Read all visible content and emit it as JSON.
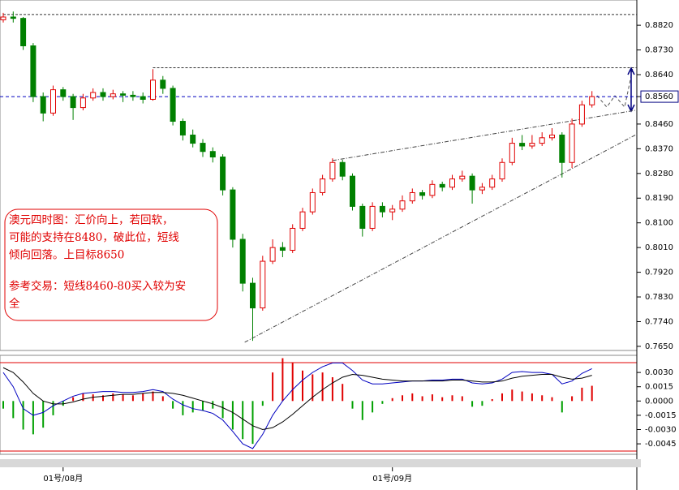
{
  "chart_data": [
    {
      "type": "candlestick",
      "categories": [
        null,
        null,
        null,
        null,
        null,
        null,
        "01号/08月",
        null,
        null,
        null,
        null,
        null,
        null,
        null,
        null,
        null,
        null,
        null,
        null,
        null,
        null,
        null,
        null,
        null,
        null,
        null,
        null,
        null,
        null,
        null,
        null,
        null,
        null,
        null,
        null,
        null,
        null,
        null,
        null,
        "01号/09月",
        null,
        null,
        null,
        null,
        null,
        null,
        null,
        null,
        null,
        null,
        null,
        null,
        null,
        null,
        null,
        null,
        null,
        null,
        null,
        null
      ],
      "open": [
        0.884,
        0.885,
        0.8845,
        0.8745,
        0.856,
        0.85,
        0.8585,
        0.856,
        0.852,
        0.8555,
        0.8575,
        0.856,
        0.857,
        0.8565,
        0.856,
        0.855,
        0.862,
        0.859,
        0.847,
        0.842,
        0.839,
        0.836,
        0.834,
        0.822,
        0.804,
        0.788,
        0.779,
        0.796,
        0.801,
        0.8,
        0.808,
        0.814,
        0.821,
        0.826,
        0.832,
        0.827,
        0.816,
        0.808,
        0.816,
        0.814,
        0.815,
        0.818,
        0.821,
        0.82,
        0.824,
        0.823,
        0.826,
        0.827,
        0.822,
        0.823,
        0.826,
        0.832,
        0.839,
        0.838,
        0.839,
        0.841,
        0.842,
        0.832,
        0.846,
        0.853
      ],
      "high": [
        0.8865,
        0.887,
        0.885,
        0.8755,
        0.8575,
        0.86,
        0.8595,
        0.857,
        0.857,
        0.859,
        0.859,
        0.8585,
        0.858,
        0.858,
        0.8575,
        0.866,
        0.8635,
        0.86,
        0.848,
        0.844,
        0.8405,
        0.8375,
        0.835,
        0.823,
        0.806,
        0.79,
        0.798,
        0.804,
        0.803,
        0.8095,
        0.8155,
        0.8225,
        0.8275,
        0.8335,
        0.833,
        0.828,
        0.817,
        0.8175,
        0.8175,
        0.8165,
        0.82,
        0.8225,
        0.822,
        0.8255,
        0.825,
        0.8275,
        0.829,
        0.828,
        0.8245,
        0.8275,
        0.8335,
        0.841,
        0.842,
        0.842,
        0.843,
        0.8445,
        0.843,
        0.848,
        0.8545,
        0.858
      ],
      "low": [
        0.883,
        0.883,
        0.873,
        0.854,
        0.847,
        0.849,
        0.8545,
        0.8475,
        0.851,
        0.8545,
        0.8545,
        0.855,
        0.854,
        0.8545,
        0.8535,
        0.8545,
        0.857,
        0.8455,
        0.84,
        0.8375,
        0.834,
        0.832,
        0.82,
        0.801,
        0.785,
        0.767,
        0.778,
        0.795,
        0.7975,
        0.799,
        0.807,
        0.813,
        0.82,
        0.825,
        0.8255,
        0.8145,
        0.805,
        0.807,
        0.812,
        0.811,
        0.814,
        0.817,
        0.8185,
        0.819,
        0.8215,
        0.822,
        0.825,
        0.817,
        0.8205,
        0.822,
        0.825,
        0.831,
        0.8365,
        0.837,
        0.838,
        0.84,
        0.8265,
        0.83,
        0.845,
        0.852
      ],
      "close": [
        0.885,
        0.8845,
        0.8745,
        0.856,
        0.85,
        0.8585,
        0.856,
        0.852,
        0.8555,
        0.8575,
        0.856,
        0.857,
        0.8565,
        0.856,
        0.855,
        0.862,
        0.859,
        0.847,
        0.842,
        0.839,
        0.836,
        0.834,
        0.822,
        0.804,
        0.788,
        0.779,
        0.796,
        0.801,
        0.8,
        0.808,
        0.814,
        0.821,
        0.826,
        0.832,
        0.827,
        0.816,
        0.808,
        0.816,
        0.814,
        0.815,
        0.818,
        0.821,
        0.82,
        0.824,
        0.823,
        0.826,
        0.827,
        0.822,
        0.823,
        0.826,
        0.832,
        0.839,
        0.838,
        0.839,
        0.841,
        0.842,
        0.832,
        0.846,
        0.853,
        0.856
      ],
      "up_color": "#e00000",
      "down_color": "#008000",
      "ylim": [
        0.7635,
        0.8912
      ],
      "yticks": [
        {
          "value": 0.882,
          "label": "0.8820"
        },
        {
          "value": 0.873,
          "label": "0.8730"
        },
        {
          "value": 0.864,
          "label": "0.8640"
        },
        {
          "value": 0.856,
          "label": "0.8560"
        },
        {
          "value": 0.846,
          "label": "0.8460"
        },
        {
          "value": 0.837,
          "label": "0.8370"
        },
        {
          "value": 0.828,
          "label": "0.8280"
        },
        {
          "value": 0.819,
          "label": "0.8190"
        },
        {
          "value": 0.81,
          "label": "0.8100"
        },
        {
          "value": 0.801,
          "label": "0.8010"
        },
        {
          "value": 0.792,
          "label": "0.7920"
        },
        {
          "value": 0.783,
          "label": "0.7830"
        },
        {
          "value": 0.774,
          "label": "0.7740"
        },
        {
          "value": 0.765,
          "label": "0.7650"
        }
      ],
      "last_price": 0.856,
      "levels": [
        {
          "value": 0.8859,
          "start": 0
        },
        {
          "value": 0.8665,
          "start": 15
        }
      ],
      "trendlines": [
        {
          "from": [
            24.2,
            0.7665
          ],
          "to": [
            63.5,
            0.8423
          ]
        },
        {
          "from": [
            33,
            0.8327
          ],
          "to": [
            63.5,
            0.8511
          ]
        }
      ],
      "annotation": [
        [
          "澳元四时图：汇价向上，若回软，",
          "可能的支持在8480，破此位，短线",
          "倾向回落。上目标8650"
        ],
        [
          "参考交易：短线8460-80买入较为安",
          "全"
        ]
      ]
    },
    {
      "type": "macd",
      "histogram": [
        -0.0008,
        -0.0018,
        -0.003,
        -0.0035,
        -0.0028,
        -0.0015,
        -0.0005,
        0.0004,
        0.0008,
        0.0007,
        0.0006,
        0.0008,
        0.0007,
        0.0006,
        0.0008,
        0.001,
        0.0005,
        -0.0008,
        -0.0015,
        -0.0012,
        -0.001,
        -0.0008,
        -0.0018,
        -0.003,
        -0.004,
        -0.0045,
        -0.0005,
        0.003,
        0.0045,
        0.004,
        0.0032,
        0.0028,
        0.003,
        0.0025,
        0.0018,
        -0.0008,
        -0.002,
        -0.0012,
        -0.0003,
        0.0003,
        0.0006,
        0.0008,
        0.0005,
        0.0007,
        0.0004,
        0.0006,
        0.0005,
        -0.0006,
        -0.0005,
        0.0002,
        0.0008,
        0.0012,
        0.001,
        0.0008,
        0.0006,
        0.0004,
        -0.0012,
        0.0005,
        0.0014,
        0.0016
      ],
      "series": [
        {
          "color": "#0000c0",
          "values": [
            0.003,
            0.0015,
            -0.0008,
            -0.0015,
            -0.0012,
            -0.0005,
            0.0,
            0.0005,
            0.0008,
            0.0009,
            0.001,
            0.001,
            0.0009,
            0.0009,
            0.001,
            0.0012,
            0.001,
            0.0002,
            -0.0004,
            -0.0008,
            -0.001,
            -0.0013,
            -0.002,
            -0.0032,
            -0.0045,
            -0.005,
            -0.0035,
            -0.0015,
            0.0,
            0.0012,
            0.0022,
            0.003,
            0.0036,
            0.004,
            0.004,
            0.0032,
            0.0022,
            0.0018,
            0.0018,
            0.0019,
            0.002,
            0.0021,
            0.0021,
            0.0022,
            0.0022,
            0.0023,
            0.0023,
            0.0019,
            0.0018,
            0.0019,
            0.0023,
            0.003,
            0.0031,
            0.003,
            0.003,
            0.0028,
            0.0018,
            0.0021,
            0.0029,
            0.0034
          ]
        },
        {
          "color": "#000000",
          "values": [
            0.0035,
            0.003,
            0.002,
            0.0008,
            0.0,
            -0.0003,
            -0.0003,
            -0.0001,
            0.0002,
            0.0004,
            0.0005,
            0.0006,
            0.0007,
            0.0007,
            0.0008,
            0.0009,
            0.0009,
            0.0008,
            0.0006,
            0.0003,
            0.0,
            -0.0003,
            -0.0007,
            -0.0012,
            -0.0019,
            -0.0026,
            -0.003,
            -0.0028,
            -0.0022,
            -0.0014,
            -0.0005,
            0.0004,
            0.0012,
            0.0019,
            0.0025,
            0.0028,
            0.0027,
            0.0025,
            0.0023,
            0.0022,
            0.0021,
            0.0021,
            0.0021,
            0.0021,
            0.0021,
            0.0022,
            0.0022,
            0.0021,
            0.002,
            0.002,
            0.0021,
            0.0024,
            0.0026,
            0.0027,
            0.0028,
            0.0028,
            0.0025,
            0.0023,
            0.0024,
            0.0027
          ]
        }
      ],
      "pos_color": "#e00000",
      "neg_color": "#00a000",
      "ylim": [
        -0.0056,
        0.0048
      ],
      "yticks": [
        {
          "value": 0.003,
          "label": "0.0030"
        },
        {
          "value": 0.0015,
          "label": "0.0015"
        },
        {
          "value": 0,
          "label": "0.0000"
        },
        {
          "value": -0.0015,
          "label": "-0.0015"
        },
        {
          "value": -0.003,
          "label": "-0.0030"
        },
        {
          "value": -0.0045,
          "label": "-0.0045"
        }
      ]
    }
  ]
}
